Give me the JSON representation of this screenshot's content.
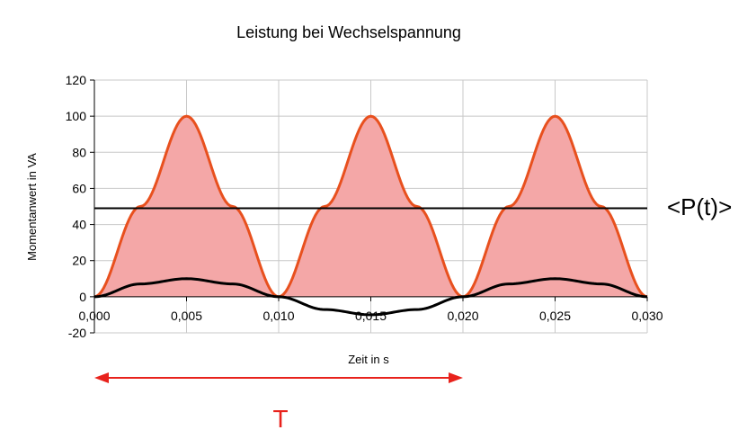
{
  "chart_data": {
    "type": "area",
    "title": "Leistung bei Wechselspannung",
    "xlabel": "Zeit in s",
    "ylabel": "Momentanwert in VA",
    "xlim": [
      0,
      0.03
    ],
    "ylim": [
      -20,
      120
    ],
    "x_ticks": [
      "0,000",
      "0,005",
      "0,010",
      "0,015",
      "0,020",
      "0,025",
      "0,030"
    ],
    "y_ticks": [
      "-20",
      "0",
      "20",
      "40",
      "60",
      "80",
      "100",
      "120"
    ],
    "grid": true,
    "series": [
      {
        "style": "filled-curve",
        "color": "#e8501e",
        "fill": "#f4a7a7",
        "x": [
          0,
          0.0025,
          0.005,
          0.0075,
          0.01,
          0.0125,
          0.015,
          0.0175,
          0.02,
          0.0225,
          0.025,
          0.0275,
          0.03
        ],
        "y": [
          0,
          50,
          100,
          50,
          0,
          50,
          100,
          50,
          0,
          50,
          100,
          50,
          0
        ]
      },
      {
        "style": "line",
        "color": "#000000",
        "x": [
          0,
          0.0025,
          0.005,
          0.0075,
          0.01,
          0.0125,
          0.015,
          0.0175,
          0.02,
          0.0225,
          0.025,
          0.0275,
          0.03
        ],
        "y": [
          0,
          7.1,
          10,
          7.1,
          0,
          -7.1,
          -10,
          -7.1,
          0,
          7.1,
          10,
          7.1,
          0
        ]
      },
      {
        "style": "horizontal-line",
        "color": "#000000",
        "value": 49
      }
    ],
    "annotations": {
      "mean_label": "<P(t)>",
      "period_label": "T",
      "period_range": [
        0,
        0.02
      ],
      "period_color": "#e8221c"
    }
  }
}
